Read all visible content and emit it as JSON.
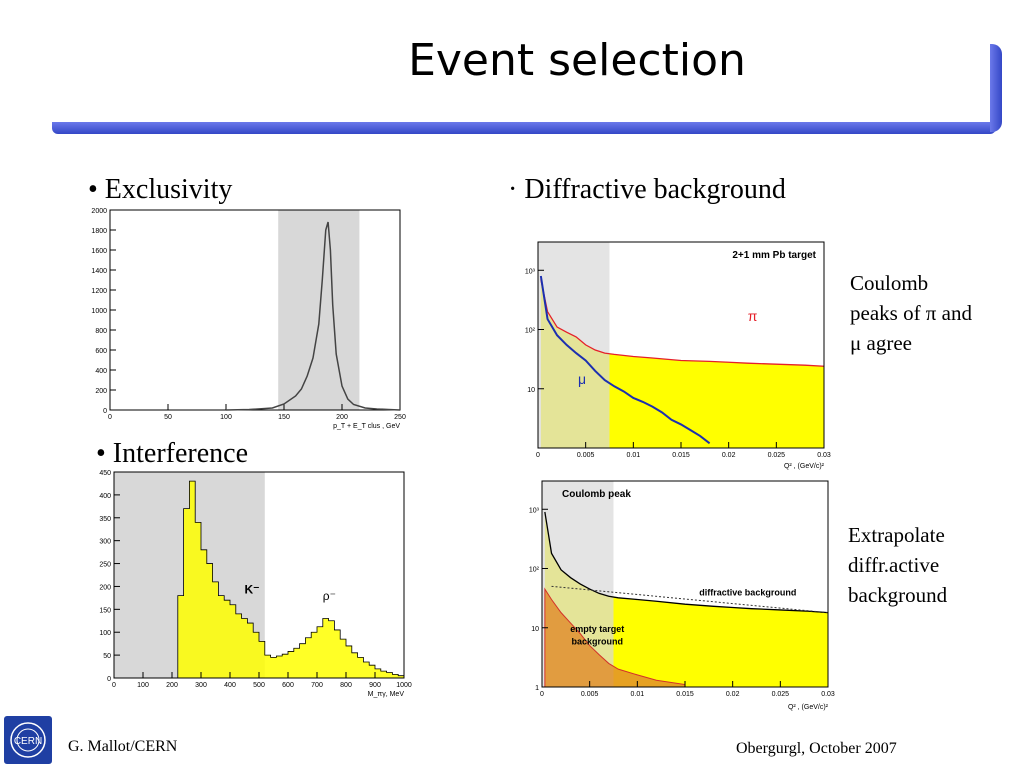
{
  "slide": {
    "title": "Event selection",
    "bullets": {
      "exclusivity": "•   Exclusivity",
      "diffractive": "· Diffractive background",
      "interference": "•   Interference"
    },
    "notes": {
      "coulomb": [
        "Coulomb",
        "peaks of π and",
        "μ agree"
      ],
      "extrapolate": [
        "Extrapolate",
        "diffr.active",
        "background"
      ]
    },
    "footer": {
      "left": "G. Mallot/CERN",
      "right": "Obergurgl, October 2007",
      "logo_text": "CERN"
    },
    "colors": {
      "accent_bar": "#3447c6",
      "fill_yellow": "#ffff00",
      "shade_grey": "#d8d8d8",
      "pi_line": "#e5202a",
      "mu_line": "#1c2fb0"
    }
  },
  "chart_data": [
    {
      "type": "line",
      "xlabel": "p_T + E_T clus , GeV",
      "xticks": [
        "0",
        "50",
        "100",
        "150",
        "200",
        "250"
      ],
      "yticks": [
        "0",
        "200",
        "400",
        "600",
        "800",
        "1000",
        "1200",
        "1400",
        "1600",
        "1800",
        "2000"
      ],
      "xlim": [
        0,
        250
      ],
      "ylim": [
        0,
        2000
      ],
      "selected_range": [
        145,
        215
      ],
      "x": [
        100,
        120,
        140,
        150,
        160,
        165,
        170,
        175,
        180,
        183,
        186,
        188,
        190,
        192,
        195,
        200,
        205,
        210,
        220,
        230,
        240,
        250
      ],
      "values": [
        0,
        5,
        20,
        60,
        140,
        210,
        340,
        520,
        860,
        1300,
        1800,
        1880,
        1600,
        1050,
        560,
        240,
        110,
        55,
        20,
        10,
        5,
        0
      ]
    },
    {
      "type": "line",
      "annotations": [
        "2+1 mm Pb target",
        "π",
        "μ"
      ],
      "xlabel": "Q² , (GeV/c)²",
      "xticks": [
        "0",
        "0.005",
        "0.01",
        "0.015",
        "0.02",
        "0.025",
        "0.03"
      ],
      "yticks": [
        "10",
        "10²",
        "10³"
      ],
      "log_y": true,
      "xlim": [
        0,
        0.03
      ],
      "selected_range": [
        0,
        0.0075
      ],
      "series": [
        {
          "name": "π",
          "x": [
            0.0003,
            0.001,
            0.002,
            0.003,
            0.004,
            0.005,
            0.006,
            0.007,
            0.008,
            0.01,
            0.012,
            0.015,
            0.018,
            0.02,
            0.022,
            0.025,
            0.028,
            0.03
          ],
          "values": [
            700,
            200,
            110,
            90,
            75,
            55,
            45,
            40,
            38,
            35,
            33,
            30,
            29,
            28,
            27,
            26,
            25,
            24
          ]
        },
        {
          "name": "μ",
          "x": [
            0.0003,
            0.001,
            0.002,
            0.003,
            0.004,
            0.005,
            0.006,
            0.007,
            0.008,
            0.009,
            0.01,
            0.011,
            0.012,
            0.013,
            0.014,
            0.015,
            0.016,
            0.017,
            0.018
          ],
          "values": [
            800,
            150,
            80,
            55,
            40,
            30,
            20,
            14,
            11,
            9,
            7,
            6,
            5,
            4,
            3,
            2.5,
            2,
            1.6,
            1.2
          ]
        }
      ]
    },
    {
      "type": "bar",
      "annotations": [
        "K⁻",
        "ρ⁻"
      ],
      "xlabel": "M_πγ, MeV",
      "xticks": [
        "0",
        "100",
        "200",
        "300",
        "400",
        "500",
        "600",
        "700",
        "800",
        "900",
        "1000"
      ],
      "yticks": [
        "0",
        "50",
        "100",
        "150",
        "200",
        "250",
        "300",
        "350",
        "400",
        "450"
      ],
      "xlim": [
        0,
        1000
      ],
      "ylim": [
        0,
        450
      ],
      "selected_range": [
        0,
        520
      ],
      "x": [
        200,
        220,
        240,
        260,
        280,
        300,
        320,
        340,
        360,
        380,
        400,
        420,
        440,
        460,
        480,
        500,
        520,
        540,
        560,
        580,
        600,
        620,
        640,
        660,
        680,
        700,
        720,
        740,
        760,
        780,
        800,
        820,
        840,
        860,
        880,
        900,
        920,
        940,
        960,
        980
      ],
      "values": [
        0,
        180,
        370,
        430,
        340,
        280,
        250,
        210,
        180,
        170,
        160,
        140,
        130,
        120,
        100,
        80,
        50,
        45,
        48,
        52,
        58,
        65,
        75,
        88,
        100,
        112,
        130,
        125,
        105,
        85,
        70,
        55,
        45,
        35,
        28,
        20,
        15,
        12,
        8,
        5
      ]
    },
    {
      "type": "line",
      "annotations": [
        "Coulomb peak",
        "diffractive background",
        "empty target background"
      ],
      "xlabel": "Q² , (GeV/c)²",
      "xticks": [
        "0",
        "0.005",
        "0.01",
        "0.015",
        "0.02",
        "0.025",
        "0.03"
      ],
      "yticks": [
        "1",
        "10",
        "10²",
        "10³"
      ],
      "log_y": true,
      "xlim": [
        0,
        0.03
      ],
      "selected_range": [
        0,
        0.0075
      ],
      "series": [
        {
          "name": "diffractive background",
          "x": [
            0.0003,
            0.001,
            0.002,
            0.003,
            0.004,
            0.005,
            0.006,
            0.007,
            0.008,
            0.01,
            0.012,
            0.015,
            0.018,
            0.02,
            0.022,
            0.025,
            0.028,
            0.03
          ],
          "values": [
            900,
            180,
            95,
            70,
            55,
            45,
            38,
            34,
            32,
            30,
            28,
            25,
            23,
            22,
            21,
            20,
            19,
            18
          ]
        },
        {
          "name": "empty target background",
          "x": [
            0.0003,
            0.001,
            0.002,
            0.003,
            0.004,
            0.005,
            0.006,
            0.007,
            0.008,
            0.01,
            0.012,
            0.015
          ],
          "values": [
            45,
            30,
            18,
            12,
            8,
            5,
            3.5,
            2.5,
            2,
            1.6,
            1.3,
            1.1
          ]
        },
        {
          "name": "fit",
          "x": [
            0.001,
            0.03
          ],
          "values": [
            50,
            18
          ]
        }
      ]
    }
  ]
}
